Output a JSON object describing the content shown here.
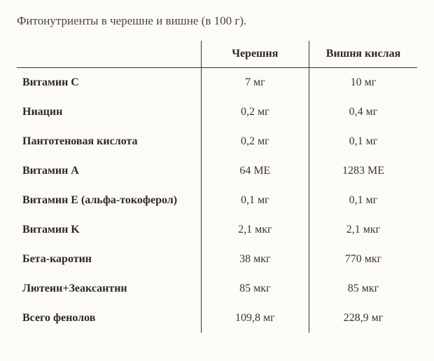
{
  "caption": "Фитонутриенты в черешне и вишне (в 100 г).",
  "columns": {
    "blank": "",
    "c1": "Черешня",
    "c2": "Вишня кислая"
  },
  "rows": [
    {
      "name": "Витамин C",
      "c1": "7 мг",
      "c2": "10 мг"
    },
    {
      "name": "Ниацин",
      "c1": "0,2 мг",
      "c2": "0,4 мг"
    },
    {
      "name": "Пантотеновая кислота",
      "c1": "0,2 мг",
      "c2": "0,1 мг"
    },
    {
      "name": "Витамин A",
      "c1": "64 МЕ",
      "c2": "1283 МЕ"
    },
    {
      "name": "Витамин E (альфа-токоферол)",
      "c1": "0,1 мг",
      "c2": "0,1 мг"
    },
    {
      "name": "Витамин K",
      "c1": "2,1 мкг",
      "c2": "2,1 мкг"
    },
    {
      "name": "Бета-каротин",
      "c1": "38 мкг",
      "c2": "770 мкг"
    },
    {
      "name": "Лютеин+Зеаксантин",
      "c1": "85 мкг",
      "c2": "85 мкг"
    },
    {
      "name": "Всего фенолов",
      "c1": "109,8 мг",
      "c2": "228,9 мг"
    }
  ],
  "style": {
    "background_color": "#fdfbf7",
    "text_color": "#3a362f",
    "border_color": "#3a362f",
    "font_family": "Georgia",
    "caption_fontsize": 17,
    "cell_fontsize": 16
  }
}
